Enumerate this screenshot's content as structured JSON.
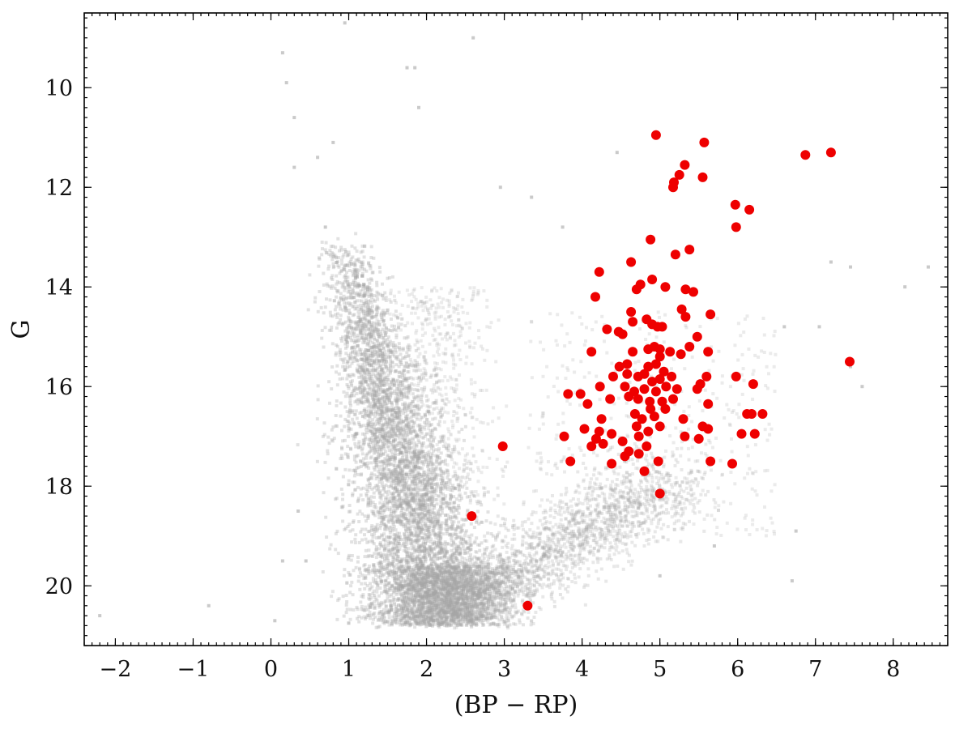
{
  "chart_data": {
    "type": "scatter",
    "title": "",
    "xlabel": "(BP − RP)",
    "ylabel": "G",
    "xlim": [
      -2.4,
      8.7
    ],
    "ylim": [
      21.2,
      8.5
    ],
    "y_inverted": true,
    "grid": false,
    "legend": "none",
    "x_ticks": [
      -2,
      -1,
      0,
      1,
      2,
      3,
      4,
      5,
      6,
      7,
      8
    ],
    "x_tick_labels": [
      "−2",
      "−1",
      "0",
      "1",
      "2",
      "3",
      "4",
      "5",
      "6",
      "7",
      "8"
    ],
    "y_ticks": [
      10,
      12,
      14,
      16,
      18,
      20
    ],
    "y_tick_labels": [
      "10",
      "12",
      "14",
      "16",
      "18",
      "20"
    ],
    "colors": {
      "background_field": "#a9a9a9",
      "dense_field": "#333333",
      "highlight": "#ee0000",
      "axes": "#000000"
    },
    "series": [
      {
        "marker": "small grey square",
        "color": "#a9a9a9",
        "description_points": [
          [
            0.95,
            8.7
          ],
          [
            2.6,
            9.0
          ],
          [
            0.15,
            9.3
          ],
          [
            1.75,
            9.6
          ],
          [
            1.85,
            9.6
          ],
          [
            0.2,
            9.9
          ],
          [
            1.9,
            10.4
          ],
          [
            0.3,
            10.6
          ],
          [
            0.8,
            11.1
          ],
          [
            0.6,
            11.4
          ],
          [
            0.3,
            11.6
          ],
          [
            4.45,
            11.3
          ],
          [
            2.95,
            12.0
          ],
          [
            3.35,
            12.2
          ],
          [
            0.7,
            12.8
          ],
          [
            3.75,
            12.8
          ],
          [
            7.2,
            13.5
          ],
          [
            7.45,
            13.6
          ],
          [
            8.45,
            13.6
          ],
          [
            8.15,
            14.0
          ],
          [
            7.05,
            14.8
          ],
          [
            6.6,
            14.8
          ],
          [
            7.45,
            15.6
          ],
          [
            7.6,
            16.0
          ],
          [
            0.35,
            18.5
          ],
          [
            6.75,
            18.9
          ],
          [
            0.15,
            19.5
          ],
          [
            0.45,
            19.5
          ],
          [
            5.7,
            19.2
          ],
          [
            6.7,
            19.9
          ],
          [
            -0.8,
            20.4
          ],
          [
            -2.2,
            20.6
          ],
          [
            0.05,
            20.7
          ],
          [
            1.0,
            20.75
          ],
          [
            5.0,
            19.8
          ]
        ],
        "density_model": "main-sequence: dense ridge from (0.9, 13.2) curving to (2.2, 20.6); giant branch spreading to (5.0, 18.0); bright tail to (2.2, 14.0)"
      },
      {
        "name": "",
        "marker": "red filled circle",
        "color": "#ee0000",
        "points": [
          [
            4.95,
            10.95
          ],
          [
            5.57,
            11.1
          ],
          [
            6.87,
            11.35
          ],
          [
            7.2,
            11.3
          ],
          [
            5.32,
            11.55
          ],
          [
            5.25,
            11.75
          ],
          [
            5.18,
            11.9
          ],
          [
            5.17,
            12.0
          ],
          [
            5.55,
            11.8
          ],
          [
            5.97,
            12.35
          ],
          [
            6.15,
            12.45
          ],
          [
            5.98,
            12.8
          ],
          [
            4.88,
            13.05
          ],
          [
            5.38,
            13.25
          ],
          [
            5.2,
            13.35
          ],
          [
            4.63,
            13.5
          ],
          [
            4.22,
            13.7
          ],
          [
            4.9,
            13.85
          ],
          [
            4.75,
            13.95
          ],
          [
            4.7,
            14.05
          ],
          [
            5.07,
            14.0
          ],
          [
            5.33,
            14.05
          ],
          [
            5.43,
            14.1
          ],
          [
            4.17,
            14.2
          ],
          [
            4.63,
            14.5
          ],
          [
            5.28,
            14.45
          ],
          [
            5.33,
            14.6
          ],
          [
            5.65,
            14.55
          ],
          [
            4.65,
            14.7
          ],
          [
            4.83,
            14.65
          ],
          [
            4.9,
            14.75
          ],
          [
            4.97,
            14.8
          ],
          [
            5.03,
            14.8
          ],
          [
            4.32,
            14.85
          ],
          [
            4.52,
            14.95
          ],
          [
            4.47,
            14.9
          ],
          [
            5.48,
            15.0
          ],
          [
            4.93,
            15.2
          ],
          [
            4.85,
            15.25
          ],
          [
            5.0,
            15.25
          ],
          [
            5.13,
            15.3
          ],
          [
            5.0,
            15.4
          ],
          [
            5.38,
            15.2
          ],
          [
            5.62,
            15.3
          ],
          [
            4.12,
            15.3
          ],
          [
            4.65,
            15.3
          ],
          [
            5.27,
            15.35
          ],
          [
            4.58,
            15.55
          ],
          [
            4.48,
            15.6
          ],
          [
            4.85,
            15.6
          ],
          [
            4.95,
            15.55
          ],
          [
            5.05,
            15.7
          ],
          [
            4.4,
            15.8
          ],
          [
            4.58,
            15.75
          ],
          [
            4.72,
            15.8
          ],
          [
            4.8,
            15.75
          ],
          [
            4.9,
            15.9
          ],
          [
            5.0,
            15.85
          ],
          [
            5.15,
            15.8
          ],
          [
            5.98,
            15.8
          ],
          [
            5.6,
            15.8
          ],
          [
            7.44,
            15.5
          ],
          [
            4.23,
            16.0
          ],
          [
            4.55,
            16.0
          ],
          [
            4.67,
            16.1
          ],
          [
            4.8,
            16.05
          ],
          [
            4.95,
            16.1
          ],
          [
            5.08,
            16.0
          ],
          [
            5.22,
            16.05
          ],
          [
            5.52,
            15.95
          ],
          [
            5.48,
            16.05
          ],
          [
            6.2,
            15.95
          ],
          [
            4.6,
            16.2
          ],
          [
            4.72,
            16.25
          ],
          [
            4.87,
            16.3
          ],
          [
            5.03,
            16.3
          ],
          [
            5.17,
            16.25
          ],
          [
            5.07,
            16.45
          ],
          [
            3.82,
            16.15
          ],
          [
            3.98,
            16.15
          ],
          [
            4.07,
            16.35
          ],
          [
            4.36,
            16.25
          ],
          [
            5.62,
            16.35
          ],
          [
            4.25,
            16.65
          ],
          [
            4.68,
            16.55
          ],
          [
            4.88,
            16.45
          ],
          [
            4.93,
            16.6
          ],
          [
            4.77,
            16.65
          ],
          [
            5.3,
            16.65
          ],
          [
            6.12,
            16.55
          ],
          [
            6.32,
            16.55
          ],
          [
            6.18,
            16.55
          ],
          [
            4.03,
            16.85
          ],
          [
            4.22,
            16.9
          ],
          [
            4.38,
            16.95
          ],
          [
            4.7,
            16.8
          ],
          [
            4.85,
            16.9
          ],
          [
            5.0,
            16.8
          ],
          [
            5.55,
            16.8
          ],
          [
            5.62,
            16.85
          ],
          [
            3.77,
            17.0
          ],
          [
            4.18,
            17.05
          ],
          [
            4.52,
            17.1
          ],
          [
            4.73,
            17.0
          ],
          [
            5.32,
            17.0
          ],
          [
            5.5,
            17.05
          ],
          [
            6.05,
            16.95
          ],
          [
            6.22,
            16.95
          ],
          [
            2.98,
            17.2
          ],
          [
            4.12,
            17.2
          ],
          [
            4.27,
            17.15
          ],
          [
            4.83,
            17.2
          ],
          [
            4.6,
            17.3
          ],
          [
            4.55,
            17.4
          ],
          [
            4.73,
            17.35
          ],
          [
            3.85,
            17.5
          ],
          [
            4.38,
            17.55
          ],
          [
            4.98,
            17.5
          ],
          [
            5.65,
            17.5
          ],
          [
            5.93,
            17.55
          ],
          [
            4.8,
            17.7
          ],
          [
            5.0,
            18.15
          ],
          [
            2.58,
            18.6
          ],
          [
            3.3,
            20.4
          ]
        ]
      }
    ]
  }
}
